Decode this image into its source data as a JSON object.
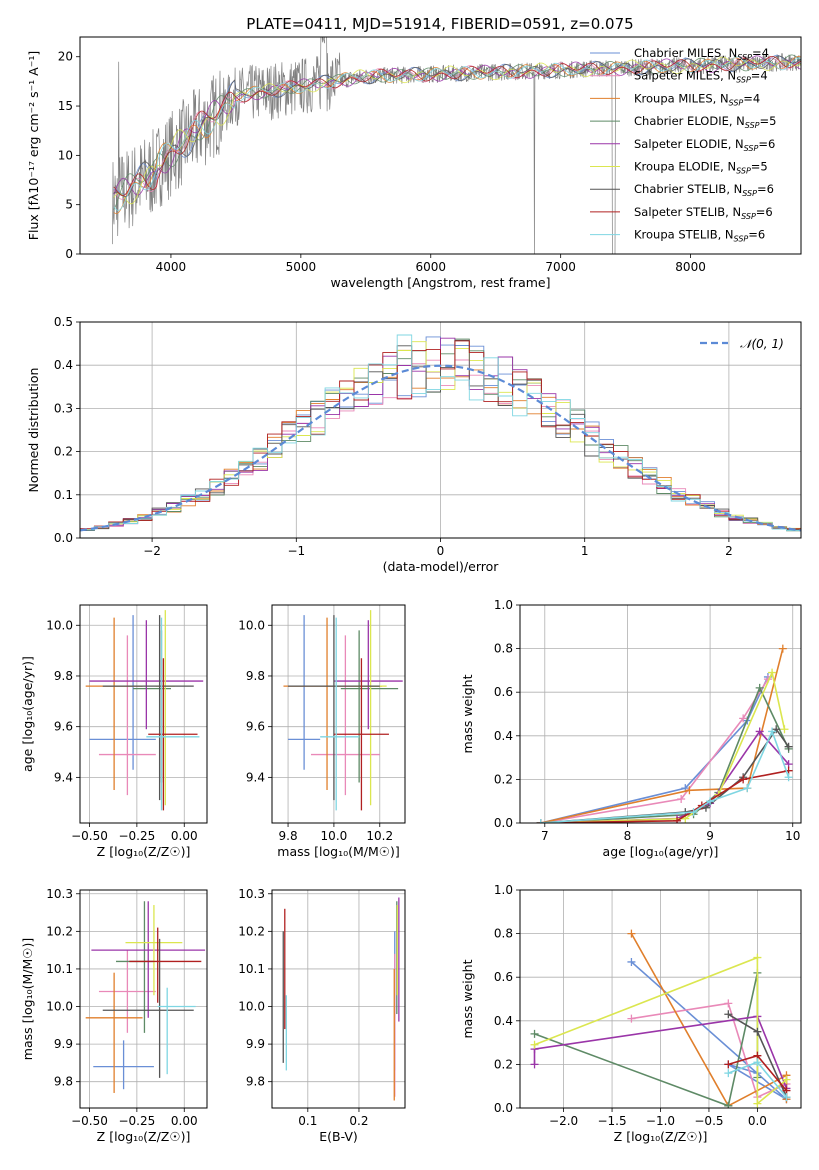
{
  "colors": {
    "Chabrier MILES": "#6a8fd6",
    "Salpeter MILES": "#e989b8",
    "Kroupa MILES": "#e07f2c",
    "Chabrier ELODIE": "#5e8a66",
    "Salpeter ELODIE": "#9a35a8",
    "Kroupa ELODIE": "#dbe64f",
    "Chabrier STELIB": "#555555",
    "Salpeter STELIB": "#b02020",
    "Kroupa STELIB": "#7fd6e2"
  },
  "chart_data": [
    {
      "id": "spectrum",
      "type": "line",
      "title": "PLATE=0411, MJD=51914, FIBERID=0591, z=0.075",
      "xlabel": "wavelength [Angstrom, rest frame]",
      "ylabel": "Flux [fλ10⁻¹⁷ erg cm⁻² s⁻¹ A⁻¹]",
      "xlim": [
        3300,
        8850
      ],
      "ylim": [
        0,
        22
      ],
      "xticks": [
        4000,
        5000,
        6000,
        7000,
        8000
      ],
      "yticks": [
        0,
        5,
        10,
        15,
        20
      ],
      "data_color": "#808080",
      "data_x_range": [
        3550,
        8900
      ],
      "legend_position": "upper-right",
      "legend": [
        {
          "label": "Chabrier MILES, N",
          "sub": "SSP",
          "suffix": "=4",
          "model": "Chabrier MILES"
        },
        {
          "label": "Salpeter MILES, N",
          "sub": "SSP",
          "suffix": "=4",
          "model": "Salpeter MILES"
        },
        {
          "label": "Kroupa MILES, N",
          "sub": "SSP",
          "suffix": "=4",
          "model": "Kroupa MILES"
        },
        {
          "label": "Chabrier ELODIE, N",
          "sub": "SSP",
          "suffix": "=5",
          "model": "Chabrier ELODIE"
        },
        {
          "label": "Salpeter ELODIE, N",
          "sub": "SSP",
          "suffix": "=6",
          "model": "Salpeter ELODIE"
        },
        {
          "label": "Kroupa ELODIE, N",
          "sub": "SSP",
          "suffix": "=5",
          "model": "Kroupa ELODIE"
        },
        {
          "label": "Chabrier STELIB, N",
          "sub": "SSP",
          "suffix": "=6",
          "model": "Chabrier STELIB"
        },
        {
          "label": "Salpeter STELIB, N",
          "sub": "SSP",
          "suffix": "=6",
          "model": "Salpeter STELIB"
        },
        {
          "label": "Kroupa STELIB, N",
          "sub": "SSP",
          "suffix": "=6",
          "model": "Kroupa STELIB"
        }
      ]
    },
    {
      "id": "residuals",
      "type": "histogram",
      "xlabel": "(data-model)/error",
      "ylabel": "Normed distribution",
      "xlim": [
        -2.5,
        2.5
      ],
      "ylim": [
        0,
        0.5
      ],
      "xticks": [
        -2,
        -1,
        0,
        1,
        2
      ],
      "yticks": [
        0.0,
        0.1,
        0.2,
        0.3,
        0.4,
        0.5
      ],
      "grid": true,
      "bin_width": 0.1,
      "legend_position": "upper-right",
      "reference_curve": {
        "label": "𝒩(0, 1)",
        "mean": 0,
        "sigma": 1,
        "color": "#5b8ad6",
        "style": "dashed"
      },
      "peaks_near": 0.47
    },
    {
      "id": "age_vs_Z",
      "type": "errorbar",
      "xlabel": "Z [log₁₀(Z/Z☉)]",
      "ylabel": "age  [log₁₀(age/yr)]",
      "xlim": [
        -0.55,
        0.12
      ],
      "ylim": [
        9.22,
        10.08
      ],
      "xticks": [
        -0.5,
        -0.25,
        0.0
      ],
      "yticks": [
        9.4,
        9.6,
        9.8,
        10.0
      ],
      "grid": true,
      "points": [
        {
          "model": "Chabrier MILES",
          "x": -0.27,
          "xerr": [
            0.23,
            0.12
          ],
          "y": 9.55,
          "yerr": [
            0.12,
            0.49
          ]
        },
        {
          "model": "Salpeter MILES",
          "x": -0.3,
          "xerr": [
            0.15,
            0.15
          ],
          "y": 9.49,
          "yerr": [
            0.16,
            0.47
          ]
        },
        {
          "model": "Kroupa MILES",
          "x": -0.37,
          "xerr": [
            0.15,
            0.15
          ],
          "y": 9.76,
          "yerr": [
            0.41,
            0.27
          ]
        },
        {
          "model": "Chabrier ELODIE",
          "x": -0.12,
          "xerr": [
            0.15,
            0.05
          ],
          "y": 9.75,
          "yerr": [
            0.37,
            0.23
          ]
        },
        {
          "model": "Salpeter ELODIE",
          "x": -0.2,
          "xerr": [
            0.3,
            0.3
          ],
          "y": 9.78,
          "yerr": [
            0.19,
            0.24
          ]
        },
        {
          "model": "Kroupa ELODIE",
          "x": -0.1,
          "xerr": [
            0.05,
            0.05
          ],
          "y": 9.76,
          "yerr": [
            0.47,
            0.3
          ]
        },
        {
          "model": "Chabrier STELIB",
          "x": -0.13,
          "xerr": [
            0.3,
            0.18
          ],
          "y": 9.76,
          "yerr": [
            0.45,
            0.28
          ]
        },
        {
          "model": "Salpeter STELIB",
          "x": -0.11,
          "xerr": [
            0.08,
            0.18
          ],
          "y": 9.57,
          "yerr": [
            0.3,
            0.3
          ]
        },
        {
          "model": "Kroupa STELIB",
          "x": -0.12,
          "xerr": [
            0.08,
            0.2
          ],
          "y": 9.56,
          "yerr": [
            0.29,
            0.47
          ]
        }
      ]
    },
    {
      "id": "age_vs_mass",
      "type": "errorbar",
      "xlabel": "mass [log₁₀(M/M☉)]",
      "xlim": [
        9.73,
        10.31
      ],
      "ylim": [
        9.22,
        10.08
      ],
      "xticks": [
        9.8,
        10.0,
        10.2
      ],
      "yticks": [
        9.4,
        9.6,
        9.8,
        10.0
      ],
      "grid": true,
      "points": [
        {
          "model": "Chabrier MILES",
          "x": 9.87,
          "xerr": [
            0.07,
            0.07
          ],
          "y": 9.55,
          "yerr": [
            0.12,
            0.49
          ]
        },
        {
          "model": "Salpeter MILES",
          "x": 10.05,
          "xerr": [
            0.15,
            0.15
          ],
          "y": 9.49,
          "yerr": [
            0.16,
            0.47
          ]
        },
        {
          "model": "Kroupa MILES",
          "x": 9.97,
          "xerr": [
            0.19,
            0.24
          ],
          "y": 9.76,
          "yerr": [
            0.41,
            0.27
          ]
        },
        {
          "model": "Chabrier ELODIE",
          "x": 10.11,
          "xerr": [
            0.08,
            0.17
          ],
          "y": 9.75,
          "yerr": [
            0.37,
            0.23
          ]
        },
        {
          "model": "Salpeter ELODIE",
          "x": 10.15,
          "xerr": [
            0.15,
            0.15
          ],
          "y": 9.78,
          "yerr": [
            0.19,
            0.24
          ]
        },
        {
          "model": "Kroupa ELODIE",
          "x": 10.16,
          "xerr": [
            0.07,
            0.07
          ],
          "y": 9.76,
          "yerr": [
            0.47,
            0.3
          ]
        },
        {
          "model": "Chabrier STELIB",
          "x": 10.0,
          "xerr": [
            0.2,
            0.2
          ],
          "y": 9.76,
          "yerr": [
            0.45,
            0.28
          ]
        },
        {
          "model": "Salpeter STELIB",
          "x": 10.12,
          "xerr": [
            0.12,
            0.12
          ],
          "y": 9.57,
          "yerr": [
            0.3,
            0.3
          ]
        },
        {
          "model": "Kroupa STELIB",
          "x": 10.01,
          "xerr": [
            0.07,
            0.1
          ],
          "y": 9.56,
          "yerr": [
            0.29,
            0.47
          ]
        }
      ]
    },
    {
      "id": "weight_vs_age",
      "type": "line",
      "xlabel": "age  [log₁₀(age/yr)]",
      "ylabel": "mass weight",
      "xlim": [
        6.7,
        10.1
      ],
      "ylim": [
        0,
        1
      ],
      "xticks": [
        7,
        8,
        9,
        10
      ],
      "yticks": [
        0.0,
        0.2,
        0.4,
        0.6,
        0.8,
        1.0
      ],
      "grid": true,
      "series": [
        {
          "model": "Chabrier MILES",
          "x": [
            6.95,
            8.7,
            9.45,
            9.7
          ],
          "y": [
            0.0,
            0.16,
            0.47,
            0.67
          ]
        },
        {
          "model": "Salpeter MILES",
          "x": [
            6.95,
            8.65,
            9.4,
            9.7
          ],
          "y": [
            0.0,
            0.11,
            0.48,
            0.66
          ]
        },
        {
          "model": "Kroupa MILES",
          "x": [
            6.95,
            8.75,
            9.45,
            9.88
          ],
          "y": [
            0.0,
            0.15,
            0.16,
            0.8
          ]
        },
        {
          "model": "Chabrier ELODIE",
          "x": [
            6.95,
            8.8,
            9.1,
            9.6,
            9.95
          ],
          "y": [
            0.0,
            0.04,
            0.14,
            0.62,
            0.34
          ]
        },
        {
          "model": "Salpeter ELODIE",
          "x": [
            6.95,
            8.6,
            9.0,
            9.6,
            9.95
          ],
          "y": [
            0.0,
            0.02,
            0.09,
            0.42,
            0.27
          ]
        },
        {
          "model": "Kroupa ELODIE",
          "x": [
            6.95,
            8.7,
            9.1,
            9.75,
            9.9
          ],
          "y": [
            0.0,
            0.02,
            0.13,
            0.69,
            0.43
          ]
        },
        {
          "model": "Chabrier STELIB",
          "x": [
            6.95,
            8.7,
            8.95,
            9.4,
            9.8,
            9.95
          ],
          "y": [
            0.0,
            0.05,
            0.07,
            0.21,
            0.43,
            0.35
          ]
        },
        {
          "model": "Salpeter STELIB",
          "x": [
            6.95,
            8.6,
            8.9,
            9.4,
            9.95
          ],
          "y": [
            0.0,
            0.01,
            0.08,
            0.2,
            0.24
          ]
        },
        {
          "model": "Kroupa STELIB",
          "x": [
            6.95,
            8.8,
            9.0,
            9.45,
            9.75,
            9.95
          ],
          "y": [
            0.0,
            0.05,
            0.1,
            0.16,
            0.42,
            0.21
          ]
        }
      ]
    },
    {
      "id": "mass_vs_Z",
      "type": "errorbar",
      "xlabel": "Z [log₁₀(Z/Z☉)]",
      "ylabel": "mass [log₁₀(M/M☉)]",
      "xlim": [
        -0.55,
        0.12
      ],
      "ylim": [
        9.73,
        10.31
      ],
      "xticks": [
        -0.5,
        -0.25,
        0.0
      ],
      "yticks": [
        9.8,
        9.9,
        10.0,
        10.1,
        10.2,
        10.3
      ],
      "grid": true,
      "points": [
        {
          "model": "Chabrier MILES",
          "x": -0.32,
          "xerr": [
            0.16,
            0.16
          ],
          "y": 9.84,
          "yerr": [
            0.06,
            0.07
          ]
        },
        {
          "model": "Salpeter MILES",
          "x": -0.3,
          "xerr": [
            0.15,
            0.15
          ],
          "y": 10.04,
          "yerr": [
            0.11,
            0.11
          ]
        },
        {
          "model": "Kroupa MILES",
          "x": -0.37,
          "xerr": [
            0.15,
            0.15
          ],
          "y": 9.97,
          "yerr": [
            0.2,
            0.12
          ]
        },
        {
          "model": "Chabrier ELODIE",
          "x": -0.21,
          "xerr": [
            0.15,
            0.05
          ],
          "y": 10.12,
          "yerr": [
            0.19,
            0.16
          ]
        },
        {
          "model": "Salpeter ELODIE",
          "x": -0.19,
          "xerr": [
            0.3,
            0.3
          ],
          "y": 10.15,
          "yerr": [
            0.18,
            0.13
          ]
        },
        {
          "model": "Kroupa ELODIE",
          "x": -0.16,
          "xerr": [
            0.15,
            0.15
          ],
          "y": 10.17,
          "yerr": [
            0.14,
            0.1
          ]
        },
        {
          "model": "Chabrier STELIB",
          "x": -0.13,
          "xerr": [
            0.3,
            0.18
          ],
          "y": 9.99,
          "yerr": [
            0.18,
            0.19
          ]
        },
        {
          "model": "Salpeter STELIB",
          "x": -0.14,
          "xerr": [
            0.15,
            0.23
          ],
          "y": 10.12,
          "yerr": [
            0.11,
            0.09
          ]
        },
        {
          "model": "Kroupa STELIB",
          "x": -0.09,
          "xerr": [
            0.05,
            0.15
          ],
          "y": 10.0,
          "yerr": [
            0.18,
            0.05
          ]
        }
      ]
    },
    {
      "id": "mass_vs_EBV",
      "type": "errorbar",
      "xlabel": "E(B-V)",
      "xlim": [
        0.03,
        0.29
      ],
      "ylim": [
        9.73,
        10.31
      ],
      "xticks": [
        0.1,
        0.2
      ],
      "yticks": [
        9.8,
        9.9,
        10.0,
        10.1,
        10.2,
        10.3
      ],
      "grid": true,
      "points": [
        {
          "model": "Chabrier MILES",
          "x": 0.27,
          "y": 10.06,
          "yerr": [
            0.23,
            0.14
          ]
        },
        {
          "model": "Salpeter MILES",
          "x": 0.27,
          "y": 10.04,
          "yerr": [
            0.28,
            0.1
          ]
        },
        {
          "model": "Kroupa MILES",
          "x": 0.269,
          "y": 9.95,
          "yerr": [
            0.2,
            0.15
          ]
        },
        {
          "model": "Chabrier ELODIE",
          "x": 0.274,
          "y": 10.12,
          "yerr": [
            0.14,
            0.16
          ]
        },
        {
          "model": "Salpeter ELODIE",
          "x": 0.278,
          "y": 10.12,
          "yerr": [
            0.16,
            0.17
          ]
        },
        {
          "model": "Kroupa ELODIE",
          "x": 0.275,
          "y": 10.15,
          "yerr": [
            0.12,
            0.12
          ]
        },
        {
          "model": "Chabrier STELIB",
          "x": 0.052,
          "y": 10.03,
          "yerr": [
            0.18,
            0.17
          ]
        },
        {
          "model": "Salpeter STELIB",
          "x": 0.055,
          "y": 10.1,
          "yerr": [
            0.16,
            0.16
          ]
        },
        {
          "model": "Kroupa STELIB",
          "x": 0.058,
          "y": 9.93,
          "yerr": [
            0.1,
            0.1
          ]
        }
      ]
    },
    {
      "id": "weight_vs_Z",
      "type": "line",
      "xlabel": "Z [log₁₀(Z/Z☉)]",
      "ylabel": "mass weight",
      "xlim": [
        -2.45,
        0.45
      ],
      "ylim": [
        0,
        1
      ],
      "xticks": [
        -2.0,
        -1.5,
        -1.0,
        -0.5,
        0.0
      ],
      "yticks": [
        0.0,
        0.2,
        0.4,
        0.6,
        0.8,
        1.0
      ],
      "grid": true,
      "series": [
        {
          "model": "Chabrier MILES",
          "x": [
            -1.3,
            0.3,
            -0.3,
            0.0
          ],
          "y": [
            0.67,
            0.04,
            0.2,
            0.16
          ]
        },
        {
          "model": "Salpeter MILES",
          "x": [
            -1.3,
            -0.3,
            0.0,
            0.3
          ],
          "y": [
            0.41,
            0.48,
            0.05,
            0.11
          ]
        },
        {
          "model": "Kroupa MILES",
          "x": [
            -1.3,
            -0.3,
            0.3,
            0.3
          ],
          "y": [
            0.8,
            0.01,
            0.15,
            0.04
          ]
        },
        {
          "model": "Chabrier ELODIE",
          "x": [
            -2.3,
            -0.3,
            0.0,
            0.0
          ],
          "y": [
            0.34,
            0.01,
            0.62,
            0.14
          ]
        },
        {
          "model": "Salpeter ELODIE",
          "x": [
            -2.3,
            -2.3,
            0.0,
            0.3
          ],
          "y": [
            0.2,
            0.27,
            0.42,
            0.09
          ]
        },
        {
          "model": "Kroupa ELODIE",
          "x": [
            -2.3,
            0.0,
            0.0,
            0.3
          ],
          "y": [
            0.29,
            0.69,
            0.02,
            0.13
          ]
        },
        {
          "model": "Chabrier STELIB",
          "x": [
            -0.3,
            0.0,
            0.3
          ],
          "y": [
            0.43,
            0.35,
            0.05
          ]
        },
        {
          "model": "Salpeter STELIB",
          "x": [
            -0.3,
            0.0,
            0.3
          ],
          "y": [
            0.2,
            0.24,
            0.08
          ]
        },
        {
          "model": "Kroupa STELIB",
          "x": [
            -0.3,
            0.0,
            0.3
          ],
          "y": [
            0.16,
            0.21,
            0.05
          ]
        }
      ]
    }
  ]
}
